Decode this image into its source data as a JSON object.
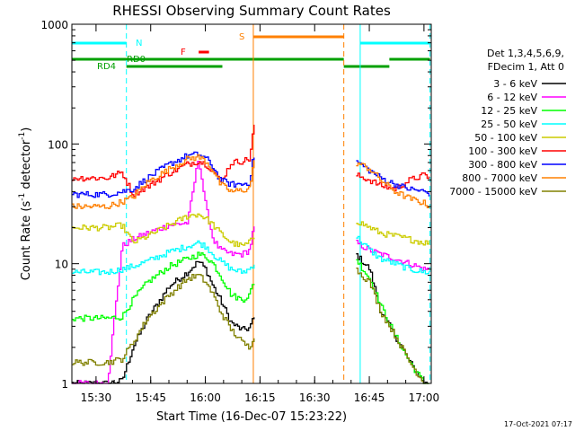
{
  "chart_data": {
    "type": "line",
    "title": "RHESSI Observing Summary Count Rates",
    "xlabel": "Start Time (16-Dec-07 15:23:22)",
    "ylabel_main": "Count Rate (s",
    "ylabel_sup1": "-1",
    "ylabel_mid": " detector",
    "ylabel_sup2": "-1",
    "ylabel_end": ")",
    "y_scale": "log",
    "ylim": [
      1,
      1000
    ],
    "xlim": [
      "15:23:22",
      "17:02:00"
    ],
    "x_ticks": [
      "15:30",
      "15:45",
      "16:00",
      "16:15",
      "16:30",
      "16:45",
      "17:00"
    ],
    "y_ticks": [
      "1",
      "10",
      "100",
      "1000"
    ],
    "timestamp": "17-Oct-2021 07:17",
    "legend": {
      "header1": "Det 1,3,4,5,6,9,",
      "header2": "FDecim 1, Att 0",
      "placement": "right"
    },
    "flags": {
      "night_label": "N",
      "saa_label": "S",
      "flare_label": "F",
      "rd0_label": "RD0",
      "rd4_label": "RD4",
      "night_color": "#00ffff",
      "saa_color": "#ff8000",
      "flare_color": "#ff0000",
      "rd_color": "#00a000",
      "night_intervals": [
        [
          "15:23:22",
          "15:38:20"
        ],
        [
          "16:42:30",
          "17:01:40"
        ]
      ],
      "saa_intervals": [
        [
          "16:13:10",
          "16:38:00"
        ]
      ],
      "flare_intervals": [
        [
          "15:58:10",
          "16:01:00"
        ]
      ],
      "rd0_intervals": [
        [
          "15:23:22",
          "16:04:40"
        ],
        [
          "16:04:40",
          "16:38:00"
        ],
        [
          "16:50:30",
          "17:01:40"
        ]
      ],
      "rd4_intervals": [
        [
          "15:38:20",
          "16:04:40"
        ],
        [
          "16:38:00",
          "16:50:30"
        ]
      ]
    },
    "vlines": [
      {
        "time": "15:38:20",
        "color": "#00ffff",
        "style": "dashed"
      },
      {
        "time": "16:13:10",
        "color": "#ff8000",
        "style": "solid"
      },
      {
        "time": "16:38:00",
        "color": "#ff8000",
        "style": "dashed"
      },
      {
        "time": "16:42:30",
        "color": "#00ffff",
        "style": "solid"
      },
      {
        "time": "17:01:40",
        "color": "#00ffff",
        "style": "dashed"
      }
    ],
    "gap": [
      "16:13:30",
      "16:41:10"
    ],
    "series": [
      {
        "name": "3 - 6 keV",
        "color": "#000000",
        "x": [
          "15:23:22",
          "15:33:00",
          "15:37:00",
          "15:40:00",
          "15:44:00",
          "15:50:00",
          "15:55:00",
          "15:58:00",
          "16:00:00",
          "16:02:00",
          "16:04:00",
          "16:07:00",
          "16:10:00",
          "16:12:00",
          "16:13:10",
          "16:41:10",
          "16:45:00",
          "16:48:00",
          "16:52:00",
          "16:56:00",
          "17:00:00",
          "17:01:40"
        ],
        "y": [
          1.0,
          1.0,
          1.05,
          2.0,
          3.5,
          6.5,
          8.5,
          10.5,
          9.0,
          6.5,
          5.0,
          3.2,
          2.8,
          2.9,
          3.5,
          12,
          9,
          4,
          2.5,
          1.5,
          1.0,
          1.0
        ]
      },
      {
        "name": "6 - 12 keV",
        "color": "#ff00ff",
        "x": [
          "15:23:22",
          "15:33:00",
          "15:37:00",
          "15:40:00",
          "15:44:00",
          "15:50:00",
          "15:55:00",
          "15:58:00",
          "16:00:00",
          "16:02:00",
          "16:04:00",
          "16:07:00",
          "16:10:00",
          "16:12:00",
          "16:13:10",
          "16:41:10",
          "16:45:00",
          "16:48:00",
          "16:52:00",
          "16:56:00",
          "17:00:00",
          "17:01:40"
        ],
        "y": [
          1.0,
          1.0,
          14,
          16,
          18,
          21,
          22,
          78,
          30,
          16,
          13,
          12,
          12,
          13,
          20,
          15,
          13,
          12,
          11,
          10,
          9,
          9
        ]
      },
      {
        "name": "12 - 25 keV",
        "color": "#00ff00",
        "x": [
          "15:23:22",
          "15:33:00",
          "15:37:00",
          "15:40:00",
          "15:44:00",
          "15:50:00",
          "15:55:00",
          "15:58:00",
          "16:00:00",
          "16:02:00",
          "16:04:00",
          "16:07:00",
          "16:10:00",
          "16:12:00",
          "16:13:10",
          "16:41:10",
          "16:45:00",
          "16:48:00",
          "16:52:00",
          "16:56:00",
          "17:00:00",
          "17:01:40"
        ],
        "y": [
          3.5,
          3.5,
          3.6,
          5.0,
          7.0,
          9.5,
          11,
          12,
          11.5,
          10,
          8,
          5.5,
          5.0,
          5.5,
          7.0,
          11,
          7.5,
          4.5,
          2.5,
          1.5,
          1.0,
          1.0
        ]
      },
      {
        "name": "25 - 50 keV",
        "color": "#00ffff",
        "x": [
          "15:23:22",
          "15:33:00",
          "15:37:00",
          "15:40:00",
          "15:44:00",
          "15:50:00",
          "15:55:00",
          "15:58:00",
          "16:00:00",
          "16:02:00",
          "16:04:00",
          "16:07:00",
          "16:10:00",
          "16:12:00",
          "16:13:10",
          "16:41:10",
          "16:45:00",
          "16:48:00",
          "16:52:00",
          "16:56:00",
          "17:00:00",
          "17:01:40"
        ],
        "y": [
          8.5,
          8.5,
          9.0,
          9.5,
          10.5,
          12.5,
          14,
          15,
          14,
          12,
          10.5,
          9,
          8.5,
          9,
          10,
          17,
          13,
          11,
          10,
          9,
          8.5,
          8.5
        ]
      },
      {
        "name": "50 - 100 keV",
        "color": "#cccc00",
        "x": [
          "15:23:22",
          "15:33:00",
          "15:37:00",
          "15:40:00",
          "15:44:00",
          "15:50:00",
          "15:55:00",
          "15:58:00",
          "16:00:00",
          "16:02:00",
          "16:04:00",
          "16:07:00",
          "16:10:00",
          "16:12:00",
          "16:13:10",
          "16:41:10",
          "16:45:00",
          "16:48:00",
          "16:52:00",
          "16:56:00",
          "17:00:00",
          "17:01:40"
        ],
        "y": [
          20,
          20,
          21,
          15,
          17,
          21,
          25,
          26,
          24,
          21,
          18,
          15,
          14,
          15,
          17,
          23,
          20,
          18,
          17,
          16,
          15,
          15
        ]
      },
      {
        "name": "100 - 300 keV",
        "color": "#ff0000",
        "x": [
          "15:23:22",
          "15:33:00",
          "15:37:00",
          "15:40:00",
          "15:44:00",
          "15:50:00",
          "15:55:00",
          "15:58:00",
          "16:00:00",
          "16:02:00",
          "16:04:00",
          "16:07:00",
          "16:10:00",
          "16:12:00",
          "16:13:10",
          "16:41:10",
          "16:45:00",
          "16:48:00",
          "16:52:00",
          "16:56:00",
          "17:00:00",
          "17:01:40"
        ],
        "y": [
          52,
          52,
          58,
          38,
          44,
          57,
          68,
          72,
          68,
          60,
          48,
          70,
          72,
          75,
          140,
          55,
          50,
          45,
          42,
          50,
          55,
          52
        ]
      },
      {
        "name": "300 - 800 keV",
        "color": "#0000ff",
        "x": [
          "15:23:22",
          "15:33:00",
          "15:37:00",
          "15:40:00",
          "15:44:00",
          "15:50:00",
          "15:55:00",
          "15:58:00",
          "16:00:00",
          "16:02:00",
          "16:04:00",
          "16:07:00",
          "16:10:00",
          "16:12:00",
          "16:13:10",
          "16:41:10",
          "16:45:00",
          "16:48:00",
          "16:52:00",
          "16:56:00",
          "17:00:00",
          "17:01:40"
        ],
        "y": [
          38,
          38,
          40,
          42,
          52,
          68,
          80,
          82,
          76,
          64,
          50,
          46,
          46,
          48,
          80,
          72,
          60,
          52,
          46,
          42,
          40,
          38
        ]
      },
      {
        "name": "800 - 7000 keV",
        "color": "#ff8000",
        "x": [
          "15:23:22",
          "15:33:00",
          "15:37:00",
          "15:40:00",
          "15:44:00",
          "15:50:00",
          "15:55:00",
          "15:58:00",
          "16:00:00",
          "16:02:00",
          "16:04:00",
          "16:07:00",
          "16:10:00",
          "16:12:00",
          "16:13:10",
          "16:41:10",
          "16:45:00",
          "16:48:00",
          "16:52:00",
          "16:56:00",
          "17:00:00",
          "17:01:40"
        ],
        "y": [
          30,
          30,
          33,
          36,
          48,
          62,
          75,
          78,
          72,
          60,
          46,
          40,
          41,
          43,
          70,
          70,
          62,
          50,
          40,
          35,
          32,
          30
        ]
      },
      {
        "name": "7000 - 15000 keV",
        "color": "#808000",
        "x": [
          "15:23:22",
          "15:33:00",
          "15:37:00",
          "15:40:00",
          "15:44:00",
          "15:50:00",
          "15:55:00",
          "15:58:00",
          "16:00:00",
          "16:02:00",
          "16:04:00",
          "16:07:00",
          "16:10:00",
          "16:12:00",
          "16:13:10",
          "16:41:10",
          "16:45:00",
          "16:48:00",
          "16:52:00",
          "16:56:00",
          "17:00:00",
          "17:01:40"
        ],
        "y": [
          1.5,
          1.5,
          1.6,
          2.2,
          3.5,
          5.5,
          7.5,
          8.0,
          7.0,
          5.5,
          4.0,
          2.8,
          2.2,
          2.0,
          2.5,
          9,
          7,
          4,
          2.5,
          1.5,
          1.0,
          1.0
        ]
      }
    ]
  }
}
